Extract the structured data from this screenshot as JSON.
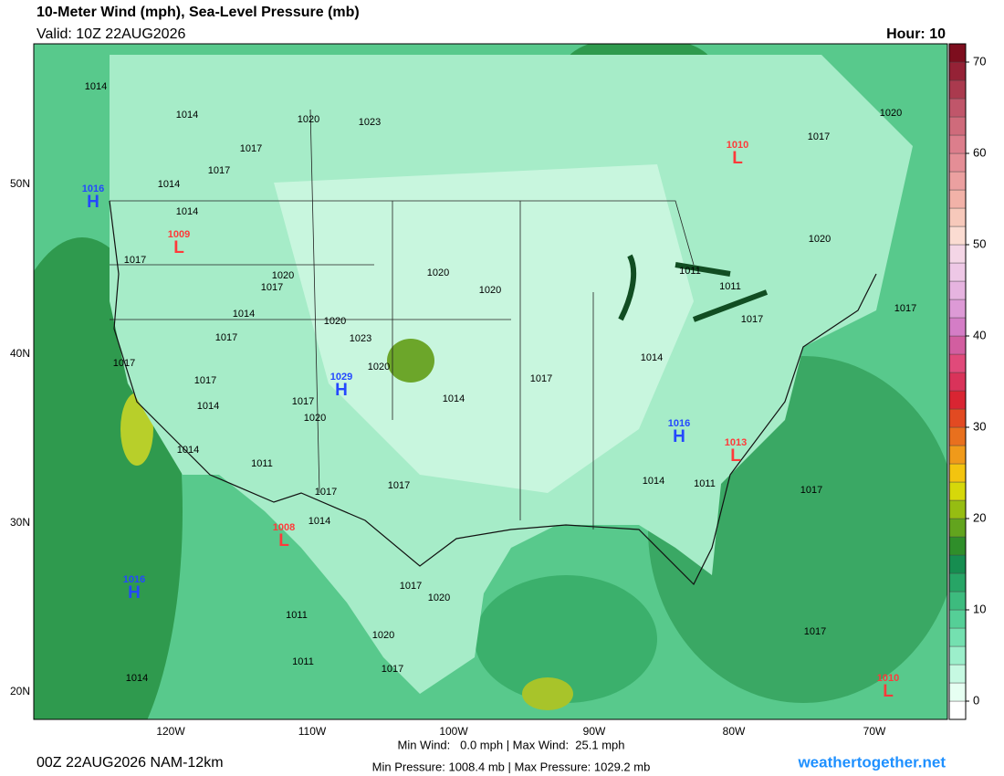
{
  "header": {
    "title": "10-Meter Wind (mph), Sea-Level Pressure (mb)",
    "valid": "Valid: 10Z 22AUG2026",
    "hour": "Hour: 10"
  },
  "map": {
    "lat_labels": [
      "50N",
      "40N",
      "30N",
      "20N"
    ],
    "lon_labels": [
      "120W",
      "110W",
      "100W",
      "90W",
      "80W",
      "70W"
    ],
    "isobar_labels": [
      1014,
      1014,
      1020,
      1023,
      1017,
      1017,
      1014,
      1014,
      1017,
      1020,
      1017,
      1020,
      1020,
      1014,
      1020,
      1017,
      1023,
      1017,
      1020,
      1017,
      1014,
      1017,
      1020,
      1014,
      1017,
      1014,
      1011,
      1011,
      1017,
      1017,
      1017,
      1020,
      1020,
      1014,
      1011,
      1017,
      1017,
      1014,
      1014,
      1011,
      1017,
      1017,
      1020,
      1011,
      1020,
      1017,
      1011,
      1014,
      1017
    ],
    "pressure_centers": [
      {
        "kind": "H",
        "pressure": 1016,
        "color": "#2448ff"
      },
      {
        "kind": "L",
        "pressure": 1009,
        "color": "#ff3a3a"
      },
      {
        "kind": "H",
        "pressure": 1029,
        "color": "#2448ff"
      },
      {
        "kind": "L",
        "pressure": 1008,
        "color": "#ff3a3a"
      },
      {
        "kind": "H",
        "pressure": 1016,
        "color": "#2448ff"
      },
      {
        "kind": "H",
        "pressure": 1016,
        "color": "#2448ff"
      },
      {
        "kind": "L",
        "pressure": 1013,
        "color": "#ff3a3a"
      },
      {
        "kind": "L",
        "pressure": 1010,
        "color": "#ff3a3a"
      },
      {
        "kind": "L",
        "pressure": 1010,
        "color": "#ff3a3a"
      }
    ]
  },
  "colorbar": {
    "lim": [
      -2,
      72
    ],
    "ticks": [
      0,
      10,
      20,
      30,
      40,
      50,
      60,
      70
    ],
    "colors": [
      "#ffffff",
      "#e6fff2",
      "#c6f9e2",
      "#9cefcb",
      "#74e0b0",
      "#55cf97",
      "#3dbb7e",
      "#27a566",
      "#168d50",
      "#2f8e2a",
      "#62a41e",
      "#96bd12",
      "#d6d80a",
      "#f3c40f",
      "#f09a1a",
      "#e8701e",
      "#e24a22",
      "#d92532",
      "#d9335a",
      "#e04a7a",
      "#d25ea0",
      "#d47dc6",
      "#dd9ad6",
      "#e6b4e0",
      "#eec8e6",
      "#f4d6e6",
      "#fbdcd2",
      "#f7c9bb",
      "#f2b2a8",
      "#eba0a0",
      "#e48e96",
      "#dc7e8c",
      "#cf6b7b",
      "#c0566a",
      "#aa3a4e",
      "#952236",
      "#7d0e1e"
    ]
  },
  "footer": {
    "model": "00Z 22AUG2026 NAM-12km",
    "wind": "Min Wind:   0.0 mph | Max Wind:  25.1 mph",
    "pressure": "Min Pressure: 1008.4 mb | Max Pressure: 1029.2 mb",
    "site": "weathertogether.net"
  }
}
